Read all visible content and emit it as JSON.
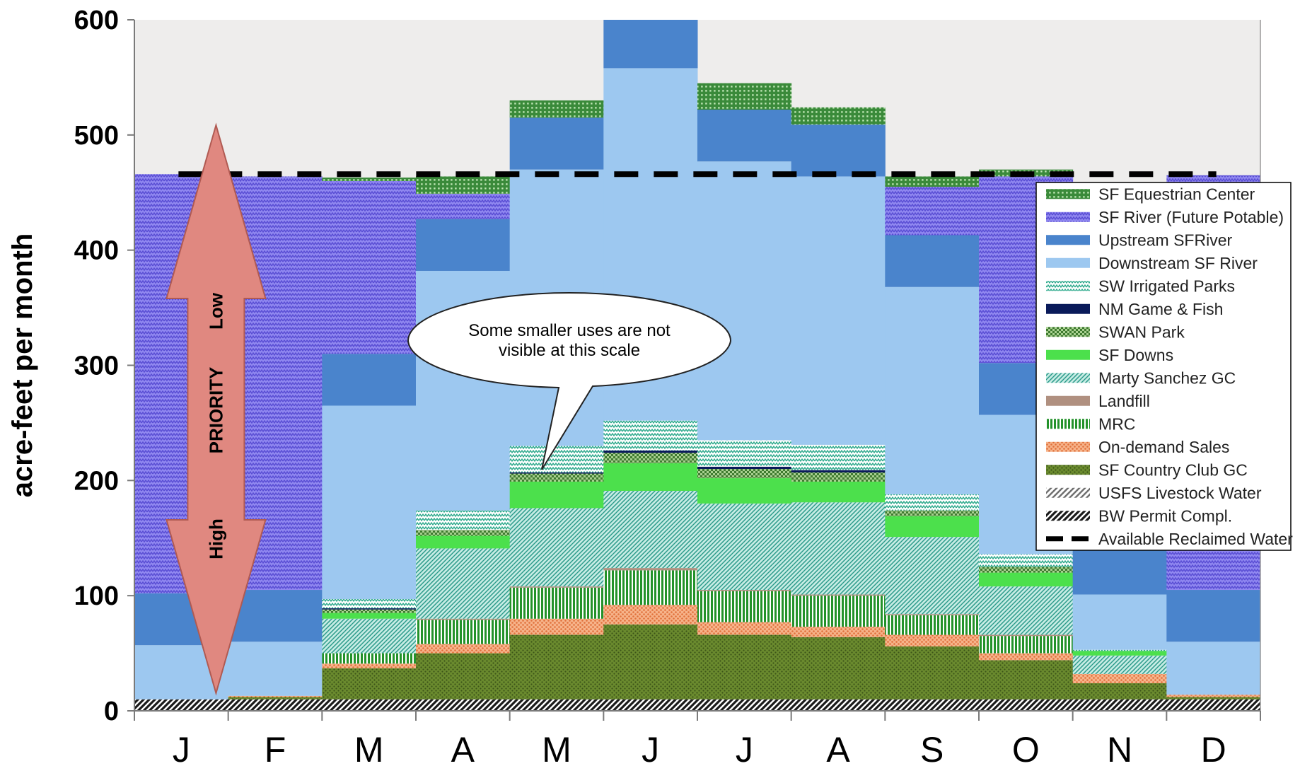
{
  "chart_data": {
    "type": "bar",
    "title": "",
    "xlabel": "",
    "ylabel": "acre-feet per month",
    "ylim": [
      0,
      600
    ],
    "yticks": [
      "0",
      "100",
      "200",
      "300",
      "400",
      "500",
      "600"
    ],
    "categories": [
      "J",
      "F",
      "M",
      "A",
      "M",
      "J",
      "J",
      "A",
      "S",
      "O",
      "N",
      "D"
    ],
    "series": [
      {
        "name": "BW Permit Compl.",
        "key": "bw",
        "color": "#3a3a3a",
        "pattern": "diag-dark",
        "values": [
          10,
          10,
          10,
          10,
          10,
          10,
          10,
          10,
          10,
          10,
          10,
          10
        ]
      },
      {
        "name": "USFS Livestock Water",
        "key": "usfs",
        "color": "#777777",
        "pattern": "diag-gray",
        "values": [
          0,
          0,
          0,
          0,
          0,
          0,
          0,
          0,
          0,
          0,
          0,
          0
        ]
      },
      {
        "name": "SF Country Club GC",
        "key": "sfcc",
        "color": "#5a7a2a",
        "pattern": "dots-olive",
        "values": [
          0,
          2,
          27,
          40,
          56,
          65,
          56,
          54,
          46,
          34,
          14,
          2
        ]
      },
      {
        "name": "On-demand Sales",
        "key": "ondemand",
        "color": "#f0a070",
        "pattern": "dots-orange",
        "values": [
          0,
          1,
          4,
          8,
          14,
          17,
          11,
          9,
          10,
          6,
          8,
          2
        ]
      },
      {
        "name": "MRC",
        "key": "mrc",
        "color": "#2a9a2a",
        "pattern": "vstripes-green",
        "values": [
          0,
          0,
          9,
          21,
          27,
          30,
          27,
          27,
          17,
          15,
          0,
          0
        ]
      },
      {
        "name": "Landfill",
        "key": "landfill",
        "color": "#b09080",
        "pattern": "none",
        "values": [
          0,
          0,
          0,
          1,
          1,
          2,
          1,
          1,
          1,
          1,
          0,
          0
        ]
      },
      {
        "name": "Marty Sanchez GC",
        "key": "marty",
        "color": "#3aa896",
        "pattern": "diag-teal",
        "values": [
          0,
          0,
          30,
          61,
          68,
          67,
          75,
          80,
          67,
          42,
          16,
          0
        ]
      },
      {
        "name": "SF Downs",
        "key": "sfdowns",
        "color": "#4ce04c",
        "pattern": "solid",
        "values": [
          0,
          0,
          5,
          11,
          23,
          24,
          22,
          18,
          18,
          12,
          4,
          0
        ]
      },
      {
        "name": "SWAN Park",
        "key": "swan",
        "color": "#4a8a3a",
        "pattern": "checker-green",
        "values": [
          0,
          0,
          3,
          5,
          7,
          9,
          8,
          8,
          5,
          5,
          0,
          0
        ]
      },
      {
        "name": "NM Game & Fish",
        "key": "nmgf",
        "color": "#0a1a5a",
        "pattern": "solid",
        "values": [
          0,
          0,
          1,
          0,
          1,
          2,
          2,
          2,
          0,
          0,
          0,
          0
        ]
      },
      {
        "name": "SW Irrigated Parks",
        "key": "swparks",
        "color": "#2aa88a",
        "pattern": "zigzag-teal",
        "values": [
          0,
          0,
          8,
          17,
          23,
          26,
          23,
          22,
          14,
          11,
          1,
          0
        ]
      },
      {
        "name": "Downstream SF River",
        "key": "downstream",
        "color": "#9dc8f0",
        "pattern": "solid",
        "values": [
          47,
          47,
          168,
          208,
          240,
          306,
          242,
          233,
          180,
          121,
          48,
          46
        ]
      },
      {
        "name": "Upstream SFRiver",
        "key": "upstream",
        "color": "#4a84cc",
        "pattern": "solid",
        "values": [
          45,
          45,
          45,
          45,
          45,
          45,
          45,
          45,
          45,
          45,
          45,
          45
        ]
      },
      {
        "name": "SF River (Future Potable)",
        "key": "future",
        "color": "#7a6ee0",
        "pattern": "zigzag-purple",
        "values": [
          364,
          359,
          150,
          22,
          0,
          0,
          0,
          0,
          42,
          162,
          309,
          360
        ]
      },
      {
        "name": "SF Equestrian Center",
        "key": "equestrian",
        "color": "#2f7a2f",
        "pattern": "grid-green",
        "values": [
          0,
          0,
          3,
          15,
          15,
          20,
          23,
          15,
          9,
          6,
          4,
          0
        ]
      }
    ],
    "reference_line": {
      "name": "Available Reclaimed Water",
      "value": 466,
      "style": "dashed"
    },
    "legend": {
      "placement": "right",
      "items": [
        {
          "label": "SF Equestrian Center",
          "key": "equestrian"
        },
        {
          "label": "SF River (Future Potable)",
          "key": "future"
        },
        {
          "label": "Upstream SFRiver",
          "key": "upstream"
        },
        {
          "label": "Downstream SF River",
          "key": "downstream"
        },
        {
          "label": "SW Irrigated Parks",
          "key": "swparks"
        },
        {
          "label": "NM Game & Fish",
          "key": "nmgf"
        },
        {
          "label": "SWAN Park",
          "key": "swan"
        },
        {
          "label": "SF Downs",
          "key": "sfdowns"
        },
        {
          "label": "Marty Sanchez GC",
          "key": "marty"
        },
        {
          "label": "Landfill",
          "key": "landfill"
        },
        {
          "label": "MRC",
          "key": "mrc"
        },
        {
          "label": "On-demand Sales",
          "key": "ondemand"
        },
        {
          "label": "SF Country Club GC",
          "key": "sfcc"
        },
        {
          "label": "USFS Livestock Water",
          "key": "usfs"
        },
        {
          "label": "BW Permit Compl.",
          "key": "bw"
        },
        {
          "label": "Available Reclaimed Water",
          "key": "line"
        }
      ]
    },
    "annotations": {
      "callout": [
        "Some smaller uses are not",
        "visible at this scale"
      ],
      "priority_arrow": {
        "label": "PRIORITY",
        "top": "Low",
        "bottom": "High"
      }
    },
    "background_color": "#eeedec"
  }
}
